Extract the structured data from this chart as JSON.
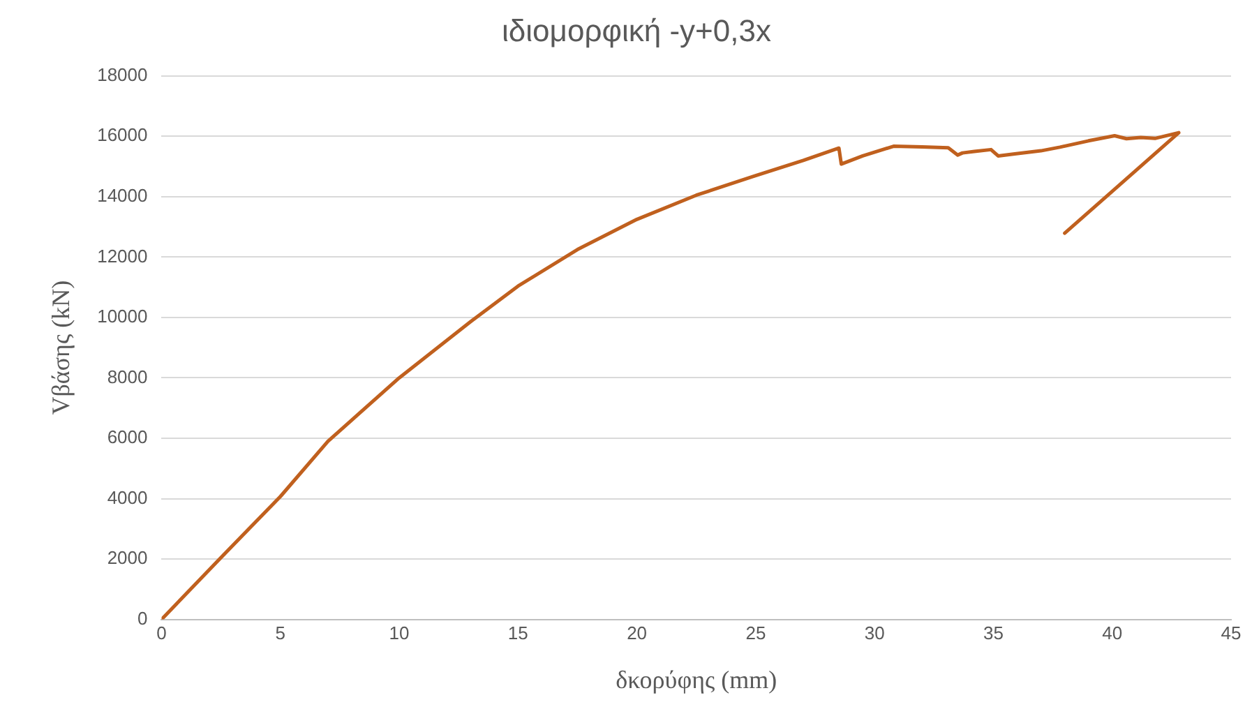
{
  "chart_data": {
    "type": "line",
    "title": "ιδιομορφική -y+0,3x",
    "xlabel": "δκορύφης (mm)",
    "ylabel": "Vβάσης (kN)",
    "x": [
      0,
      2.5,
      5,
      7,
      10,
      13,
      15,
      17.5,
      20,
      22.5,
      25,
      27,
      28.5,
      28.6,
      29.5,
      30.8,
      32,
      33.1,
      33.5,
      33.7,
      34.2,
      34.9,
      35.2,
      35.9,
      37,
      37.8,
      39,
      40.1,
      40.6,
      41.2,
      41.8,
      42.8,
      38
    ],
    "values": [
      0,
      2050,
      4070,
      5900,
      8000,
      9860,
      11040,
      12250,
      13250,
      14050,
      14700,
      15200,
      15610,
      15080,
      15350,
      15670,
      15650,
      15620,
      15380,
      15450,
      15500,
      15560,
      15350,
      15420,
      15520,
      15640,
      15850,
      16020,
      15920,
      15960,
      15930,
      16120,
      12790
    ],
    "color": "#c0601e",
    "marker": "none",
    "line_style": "solid",
    "xlim": [
      0,
      45
    ],
    "xticks": [
      0,
      5,
      10,
      15,
      20,
      25,
      30,
      35,
      40,
      45
    ],
    "ylim": [
      0,
      18000
    ],
    "yticks": [
      0,
      2000,
      4000,
      6000,
      8000,
      10000,
      12000,
      14000,
      16000,
      18000
    ],
    "grid": "y",
    "legend": false
  }
}
